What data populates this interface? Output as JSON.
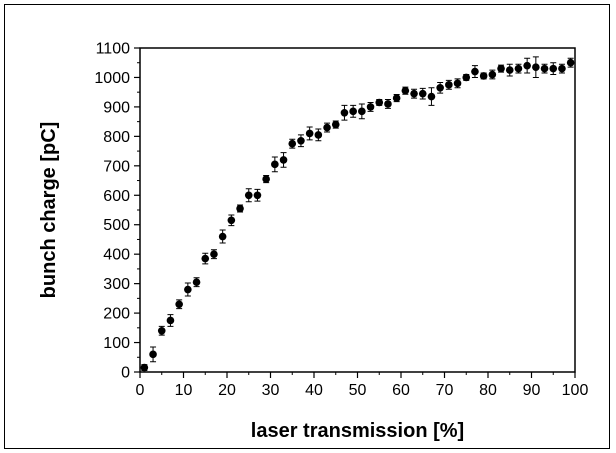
{
  "chart_data": {
    "type": "scatter",
    "title": "",
    "xlabel": "laser transmission [%]",
    "ylabel": "bunch charge [pC]",
    "xlim": [
      0,
      100
    ],
    "ylim": [
      0,
      1100
    ],
    "xticks": [
      0,
      10,
      20,
      30,
      40,
      50,
      60,
      70,
      80,
      90,
      100
    ],
    "yticks": [
      0,
      100,
      200,
      300,
      400,
      500,
      600,
      700,
      800,
      900,
      1000,
      1100
    ],
    "grid": false,
    "legend": "none",
    "marker_color": "#000000",
    "error_bars": true,
    "series": [
      {
        "x": [
          1,
          3,
          5,
          7,
          9,
          11,
          13,
          15,
          17,
          19,
          21,
          23,
          25,
          27,
          29,
          31,
          33,
          35,
          37,
          39,
          41,
          43,
          45,
          47,
          49,
          51,
          53,
          55,
          57,
          59,
          61,
          63,
          65,
          67,
          69,
          71,
          73,
          75,
          77,
          79,
          81,
          83,
          85,
          87,
          89,
          91,
          93,
          95,
          97,
          99
        ],
        "y": [
          15,
          60,
          140,
          175,
          230,
          280,
          305,
          385,
          400,
          460,
          515,
          555,
          600,
          600,
          655,
          705,
          720,
          775,
          785,
          810,
          805,
          830,
          840,
          880,
          885,
          885,
          900,
          915,
          910,
          930,
          955,
          945,
          945,
          935,
          965,
          975,
          980,
          1000,
          1020,
          1005,
          1010,
          1030,
          1025,
          1030,
          1040,
          1035,
          1030,
          1030,
          1030,
          1050
        ],
        "err": [
          10,
          25,
          15,
          20,
          15,
          22,
          15,
          18,
          15,
          22,
          18,
          12,
          22,
          20,
          12,
          25,
          25,
          15,
          20,
          22,
          20,
          15,
          12,
          25,
          20,
          25,
          15,
          10,
          15,
          12,
          12,
          15,
          18,
          30,
          18,
          15,
          15,
          10,
          20,
          10,
          15,
          12,
          20,
          15,
          25,
          35,
          15,
          20,
          15,
          15
        ]
      }
    ]
  }
}
